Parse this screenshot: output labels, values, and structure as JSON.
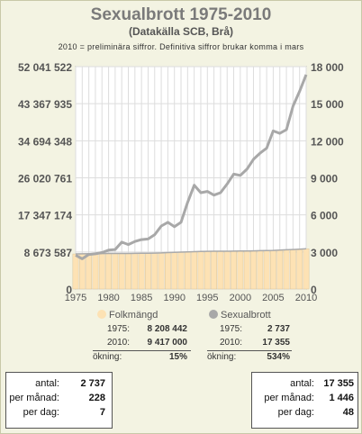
{
  "header": {
    "title": "Sexualbrott 1975-2010",
    "subtitle": "(Datakälla SCB, Brå)",
    "note": "2010 = preliminära siffror. Definitiva siffror brukar komma i mars"
  },
  "colors": {
    "background": "#f3f3e2",
    "bar_fill": "#fde2b4",
    "bar_stroke": "#d9c59b",
    "folk_line": "#aaaaaa",
    "crime_line": "#a8a8a8"
  },
  "chart_data": {
    "type": "bar+line",
    "x_ticks": [
      1975,
      1980,
      1985,
      1990,
      1995,
      2000,
      2005,
      2010
    ],
    "left_axis": {
      "ticks": [
        "0",
        "8 673 587",
        "17 347 174",
        "26 020 761",
        "34 694 348",
        "43 367 935",
        "52 041 522"
      ],
      "ylim": [
        0,
        52041522
      ]
    },
    "right_axis": {
      "ticks": [
        "0",
        "3 000",
        "6 000",
        "9 000",
        "12 000",
        "15 000",
        "18 000"
      ],
      "ylim": [
        0,
        18000
      ]
    },
    "years": [
      1975,
      1976,
      1977,
      1978,
      1979,
      1980,
      1981,
      1982,
      1983,
      1984,
      1985,
      1986,
      1987,
      1988,
      1989,
      1990,
      1991,
      1992,
      1993,
      1994,
      1995,
      1996,
      1997,
      1998,
      1999,
      2000,
      2001,
      2002,
      2003,
      2004,
      2005,
      2006,
      2007,
      2008,
      2009,
      2010
    ],
    "series": [
      {
        "name": "Folkmängd",
        "axis": "left",
        "values": [
          8208442,
          8236179,
          8267116,
          8284437,
          8303010,
          8317937,
          8323033,
          8327484,
          8330573,
          8342621,
          8358139,
          8381515,
          8414083,
          8458888,
          8527036,
          8590630,
          8644119,
          8692013,
          8745109,
          8816381,
          8837496,
          8844499,
          8847625,
          8854322,
          8861426,
          8882792,
          8909128,
          8940788,
          8975670,
          9011392,
          9047752,
          9113257,
          9182927,
          9256347,
          9340682,
          9417000
        ]
      },
      {
        "name": "Sexualbrott",
        "axis": "right",
        "values": [
          2737,
          2450,
          2800,
          2850,
          2950,
          3150,
          3200,
          3800,
          3600,
          3850,
          4000,
          4050,
          4400,
          5100,
          5400,
          5050,
          5400,
          7000,
          8400,
          7800,
          7900,
          7600,
          7800,
          8500,
          9300,
          9200,
          9700,
          10500,
          11000,
          11400,
          12800,
          12600,
          12900,
          14800,
          16000,
          17355
        ]
      }
    ]
  },
  "legend": {
    "folk": "Folkmängd",
    "crime": "Sexualbrott"
  },
  "stats": {
    "folk": {
      "y1_label": "1975:",
      "y1_value": "8 208 442",
      "y2_label": "2010:",
      "y2_value": "9 417 000",
      "change_label": "ökning:",
      "change_value": "15%"
    },
    "crime": {
      "y1_label": "1975:",
      "y1_value": "2 737",
      "y2_label": "2010:",
      "y2_value": "17 355",
      "change_label": "ökning:",
      "change_value": "534%"
    }
  },
  "box_left": {
    "antal_label": "antal:",
    "antal": "2 737",
    "month_label": "per månad:",
    "month": "228",
    "day_label": "per dag:",
    "day": "7"
  },
  "box_right": {
    "antal_label": "antal:",
    "antal": "17 355",
    "month_label": "per månad:",
    "month": "1 446",
    "day_label": "per dag:",
    "day": "48"
  }
}
